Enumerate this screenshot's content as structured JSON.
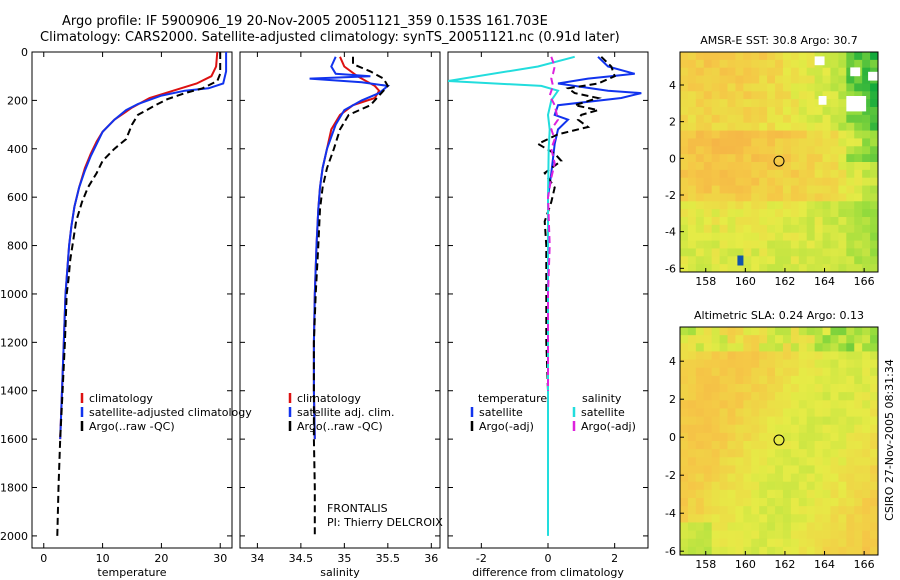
{
  "header": {
    "line1": "Argo profile: IF 5900906_19 20-Nov-2005 20051121_359 0.153S 161.703E",
    "line2": "Climatology: CARS2000. Satellite-adjusted climatology: synTS_20051121.nc (0.91d later)"
  },
  "side_label": "CSIRO 27-Nov-2005 08:31:34",
  "colors": {
    "clim": "#dd1111",
    "sat": "#1133ee",
    "argo": "#000000",
    "sal_sat": "#22dddd",
    "sal_argo": "#dd22dd"
  },
  "chart_data": [
    {
      "id": "temp",
      "type": "line",
      "xlabel": "temperature",
      "xlim": [
        -2,
        32
      ],
      "ylim": [
        0,
        2050
      ],
      "xticks": [
        0,
        10,
        20,
        30
      ],
      "yticks": [
        0,
        200,
        400,
        600,
        800,
        1000,
        1200,
        1400,
        1600,
        1800,
        2000
      ],
      "legend_title": "",
      "legend": [
        "climatology",
        "satellite-adjusted climatology",
        "Argo(..raw -QC)"
      ],
      "series": [
        {
          "name": "climatology",
          "style": "clim",
          "points": [
            [
              29.5,
              0
            ],
            [
              29.3,
              60
            ],
            [
              28.5,
              100
            ],
            [
              26,
              130
            ],
            [
              22,
              160
            ],
            [
              18,
              190
            ],
            [
              15,
              230
            ],
            [
              12,
              280
            ],
            [
              10,
              330
            ],
            [
              9,
              370
            ],
            [
              8,
              420
            ],
            [
              7,
              480
            ],
            [
              6,
              560
            ],
            [
              5.2,
              640
            ],
            [
              4.7,
              720
            ],
            [
              4.3,
              800
            ],
            [
              4,
              900
            ],
            [
              3.7,
              1000
            ],
            [
              3.4,
              1200
            ],
            [
              3.1,
              1400
            ],
            [
              2.8,
              1600
            ]
          ]
        },
        {
          "name": "satellite-adjusted climatology",
          "style": "sat",
          "points": [
            [
              31,
              0
            ],
            [
              31,
              80
            ],
            [
              30.5,
              130
            ],
            [
              28,
              150
            ],
            [
              24,
              160
            ],
            [
              20,
              180
            ],
            [
              16,
              215
            ],
            [
              14,
              240
            ],
            [
              12,
              280
            ],
            [
              10,
              330
            ],
            [
              9,
              380
            ],
            [
              8,
              430
            ],
            [
              7,
              490
            ],
            [
              6,
              560
            ],
            [
              5.2,
              640
            ],
            [
              4.7,
              720
            ],
            [
              4.3,
              800
            ],
            [
              4,
              900
            ],
            [
              3.7,
              1000
            ],
            [
              3.4,
              1200
            ],
            [
              3.1,
              1400
            ],
            [
              2.8,
              1600
            ]
          ]
        },
        {
          "name": "Argo(..raw -QC)",
          "style": "argo",
          "points": [
            [
              30,
              0
            ],
            [
              30,
              90
            ],
            [
              29.5,
              120
            ],
            [
              27,
              150
            ],
            [
              24,
              170
            ],
            [
              21,
              195
            ],
            [
              19,
              220
            ],
            [
              16,
              260
            ],
            [
              15,
              300
            ],
            [
              14,
              360
            ],
            [
              12,
              400
            ],
            [
              10,
              450
            ],
            [
              9,
              500
            ],
            [
              7.5,
              560
            ],
            [
              6.5,
              620
            ],
            [
              5.5,
              700
            ],
            [
              5,
              780
            ],
            [
              4.5,
              860
            ],
            [
              4.2,
              940
            ],
            [
              3.9,
              1000
            ],
            [
              3.6,
              1200
            ],
            [
              3.2,
              1400
            ],
            [
              2.8,
              1600
            ],
            [
              2.5,
              1800
            ],
            [
              2.3,
              2000
            ]
          ]
        }
      ]
    },
    {
      "id": "sal",
      "type": "line",
      "xlabel": "salinity",
      "xlim": [
        33.8,
        36.1
      ],
      "ylim": [
        0,
        2050
      ],
      "xticks": [
        34,
        34.5,
        35,
        35.5,
        36
      ],
      "yticks": [
        0,
        200,
        400,
        600,
        800,
        1000,
        1200,
        1400,
        1600,
        1800,
        2000
      ],
      "legend_title": "",
      "legend": [
        "climatology",
        "satellite adj. clim.",
        "Argo(..raw -QC)"
      ],
      "annotation": [
        "FRONTALIS",
        "PI: Thierry DELCROIX"
      ],
      "series": [
        {
          "name": "climatology",
          "style": "clim",
          "points": [
            [
              34.95,
              20
            ],
            [
              35.0,
              60
            ],
            [
              35.15,
              100
            ],
            [
              35.35,
              140
            ],
            [
              35.4,
              160
            ],
            [
              35.35,
              190
            ],
            [
              35.1,
              220
            ],
            [
              34.95,
              260
            ],
            [
              34.85,
              320
            ],
            [
              34.8,
              400
            ],
            [
              34.75,
              480
            ],
            [
              34.72,
              560
            ],
            [
              34.7,
              650
            ],
            [
              34.68,
              800
            ],
            [
              34.66,
              1000
            ],
            [
              34.65,
              1200
            ],
            [
              34.65,
              1400
            ],
            [
              34.66,
              1600
            ]
          ]
        },
        {
          "name": "satellite adj. clim.",
          "style": "sat",
          "points": [
            [
              34.9,
              20
            ],
            [
              34.85,
              60
            ],
            [
              34.9,
              90
            ],
            [
              35.3,
              100
            ],
            [
              34.6,
              110
            ],
            [
              35.2,
              125
            ],
            [
              35.5,
              140
            ],
            [
              35.4,
              170
            ],
            [
              35.2,
              200
            ],
            [
              35.0,
              240
            ],
            [
              34.9,
              300
            ],
            [
              34.8,
              400
            ],
            [
              34.75,
              480
            ],
            [
              34.72,
              560
            ],
            [
              34.7,
              650
            ],
            [
              34.68,
              800
            ],
            [
              34.66,
              1000
            ],
            [
              34.65,
              1200
            ],
            [
              34.65,
              1400
            ],
            [
              34.66,
              1600
            ]
          ]
        },
        {
          "name": "Argo(..raw -QC)",
          "style": "argo",
          "points": [
            [
              35.1,
              20
            ],
            [
              35.1,
              50
            ],
            [
              35.3,
              80
            ],
            [
              35.45,
              110
            ],
            [
              35.5,
              140
            ],
            [
              35.4,
              180
            ],
            [
              35.3,
              220
            ],
            [
              35.05,
              260
            ],
            [
              34.95,
              320
            ],
            [
              34.88,
              400
            ],
            [
              34.8,
              480
            ],
            [
              34.75,
              560
            ],
            [
              34.72,
              650
            ],
            [
              34.7,
              800
            ],
            [
              34.67,
              1000
            ],
            [
              34.65,
              1200
            ],
            [
              34.65,
              1400
            ],
            [
              34.65,
              1600
            ],
            [
              34.66,
              1800
            ],
            [
              34.66,
              2000
            ]
          ]
        }
      ]
    },
    {
      "id": "diff",
      "type": "line",
      "xlabel": "difference from climatology",
      "xlim": [
        -3,
        3
      ],
      "ylim": [
        0,
        2050
      ],
      "xticks": [
        -2,
        0,
        2
      ],
      "yticks": [
        0,
        200,
        400,
        600,
        800,
        1000,
        1200,
        1400,
        1600,
        1800,
        2000
      ],
      "legend_title": "",
      "legend_title_left": "temperature",
      "legend_title_right": "salinity",
      "legend_left": [
        "satellite",
        "Argo(-adj)"
      ],
      "legend_right": [
        "satellite",
        "Argo(-adj)"
      ],
      "series": [
        {
          "name": "temperature satellite",
          "style": "sat",
          "points": [
            [
              1.5,
              20
            ],
            [
              1.8,
              60
            ],
            [
              2.6,
              90
            ],
            [
              1.2,
              110
            ],
            [
              0.3,
              130
            ],
            [
              1.8,
              160
            ],
            [
              2.8,
              170
            ],
            [
              2.2,
              190
            ],
            [
              0.3,
              220
            ],
            [
              0.2,
              260
            ],
            [
              0.6,
              280
            ],
            [
              0.3,
              320
            ],
            [
              0.2,
              380
            ],
            [
              0.1,
              500
            ],
            [
              0.0,
              600
            ],
            [
              0.0,
              800
            ],
            [
              0.0,
              1000
            ],
            [
              0.0,
              1200
            ],
            [
              0.0,
              1400
            ],
            [
              0.0,
              1600
            ]
          ]
        },
        {
          "name": "temperature Argo(-adj)",
          "style": "argo",
          "points": [
            [
              1.6,
              20
            ],
            [
              1.9,
              60
            ],
            [
              2.0,
              100
            ],
            [
              1.5,
              130
            ],
            [
              0.6,
              150
            ],
            [
              0.8,
              170
            ],
            [
              1.5,
              190
            ],
            [
              0.8,
              220
            ],
            [
              1.5,
              240
            ],
            [
              1.0,
              260
            ],
            [
              0.9,
              280
            ],
            [
              1.2,
              310
            ],
            [
              0.3,
              340
            ],
            [
              -0.3,
              380
            ],
            [
              0.2,
              420
            ],
            [
              0.4,
              450
            ],
            [
              -0.1,
              500
            ],
            [
              0.2,
              560
            ],
            [
              0.1,
              620
            ],
            [
              -0.1,
              700
            ],
            [
              -0.05,
              800
            ],
            [
              -0.05,
              1000
            ],
            [
              -0.05,
              1200
            ],
            [
              0,
              1400
            ]
          ]
        },
        {
          "name": "salinity satellite",
          "style": "sal_sat",
          "points": [
            [
              0.8,
              20
            ],
            [
              -0.3,
              60
            ],
            [
              -3,
              120
            ],
            [
              -0.2,
              140
            ],
            [
              0.3,
              160
            ],
            [
              0.1,
              200
            ],
            [
              0.0,
              260
            ],
            [
              0.05,
              320
            ],
            [
              0.02,
              400
            ],
            [
              0,
              600
            ],
            [
              0,
              1000
            ],
            [
              0,
              1400
            ],
            [
              0,
              1600
            ],
            [
              0,
              1800
            ],
            [
              0,
              2000
            ]
          ]
        },
        {
          "name": "salinity Argo(-adj)",
          "style": "sal_argo",
          "points": [
            [
              0.1,
              20
            ],
            [
              0.2,
              60
            ],
            [
              0.15,
              90
            ],
            [
              0.1,
              110
            ],
            [
              0.15,
              140
            ],
            [
              0.05,
              180
            ],
            [
              0.2,
              220
            ],
            [
              0.3,
              280
            ],
            [
              0.1,
              320
            ],
            [
              0.2,
              360
            ],
            [
              0.1,
              400
            ],
            [
              0.2,
              460
            ],
            [
              0.1,
              520
            ],
            [
              0,
              600
            ],
            [
              0.05,
              800
            ],
            [
              0,
              1000
            ],
            [
              0,
              1200
            ],
            [
              0,
              1400
            ]
          ]
        }
      ]
    },
    {
      "id": "sst",
      "type": "heatmap",
      "title": "AMSR-E SST: 30.8 Argo: 30.7",
      "xlim": [
        156.7,
        166.7
      ],
      "ylim": [
        -6.2,
        5.8
      ],
      "xticks": [
        158,
        160,
        162,
        164,
        166
      ],
      "yticks": [
        -6,
        -4,
        -2,
        0,
        2,
        4
      ],
      "marker": [
        161.7,
        -0.15
      ]
    },
    {
      "id": "sla",
      "type": "heatmap",
      "title": "Altimetric SLA: 0.24 Argo: 0.13",
      "xlim": [
        156.7,
        166.7
      ],
      "ylim": [
        -6.2,
        5.8
      ],
      "xticks": [
        158,
        160,
        162,
        164,
        166
      ],
      "yticks": [
        -6,
        -4,
        -2,
        0,
        2,
        4
      ],
      "marker": [
        161.7,
        -0.15
      ]
    }
  ]
}
